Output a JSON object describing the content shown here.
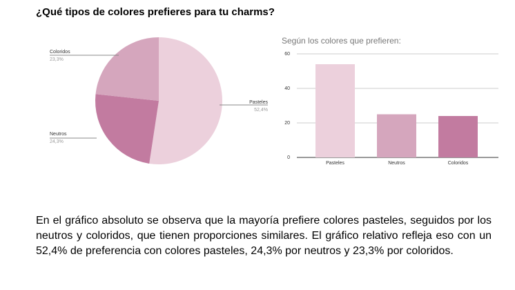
{
  "title": "¿Qué tipos de colores prefieres para tu charms?",
  "chart_data": [
    {
      "type": "pie",
      "categories": [
        "Pasteles",
        "Neutros",
        "Coloridos"
      ],
      "values": [
        52.4,
        24.3,
        23.3
      ],
      "value_labels": [
        "52,4%",
        "24,3%",
        "23,3%"
      ],
      "colors": [
        "#ecd0dc",
        "#c27ba0",
        "#d5a6bd"
      ]
    },
    {
      "type": "bar",
      "title": "Según los colores que prefieren:",
      "categories": [
        "Pasteles",
        "Neutros",
        "Coloridos"
      ],
      "values": [
        54,
        25,
        24
      ],
      "colors": [
        "#ecd0dc",
        "#d5a6bd",
        "#c27ba0"
      ],
      "ylim": [
        0,
        60
      ],
      "yticks": [
        0,
        20,
        40,
        60
      ],
      "grid": true
    }
  ],
  "paragraph": "En el gráfico absoluto se observa que la mayoría prefiere colores pasteles, seguidos por los neutros y coloridos, que tienen proporciones similares. El gráfico relativo refleja eso con un 52,4% de preferencia con colores pasteles, 24,3% por neutros y 23,3% por coloridos."
}
